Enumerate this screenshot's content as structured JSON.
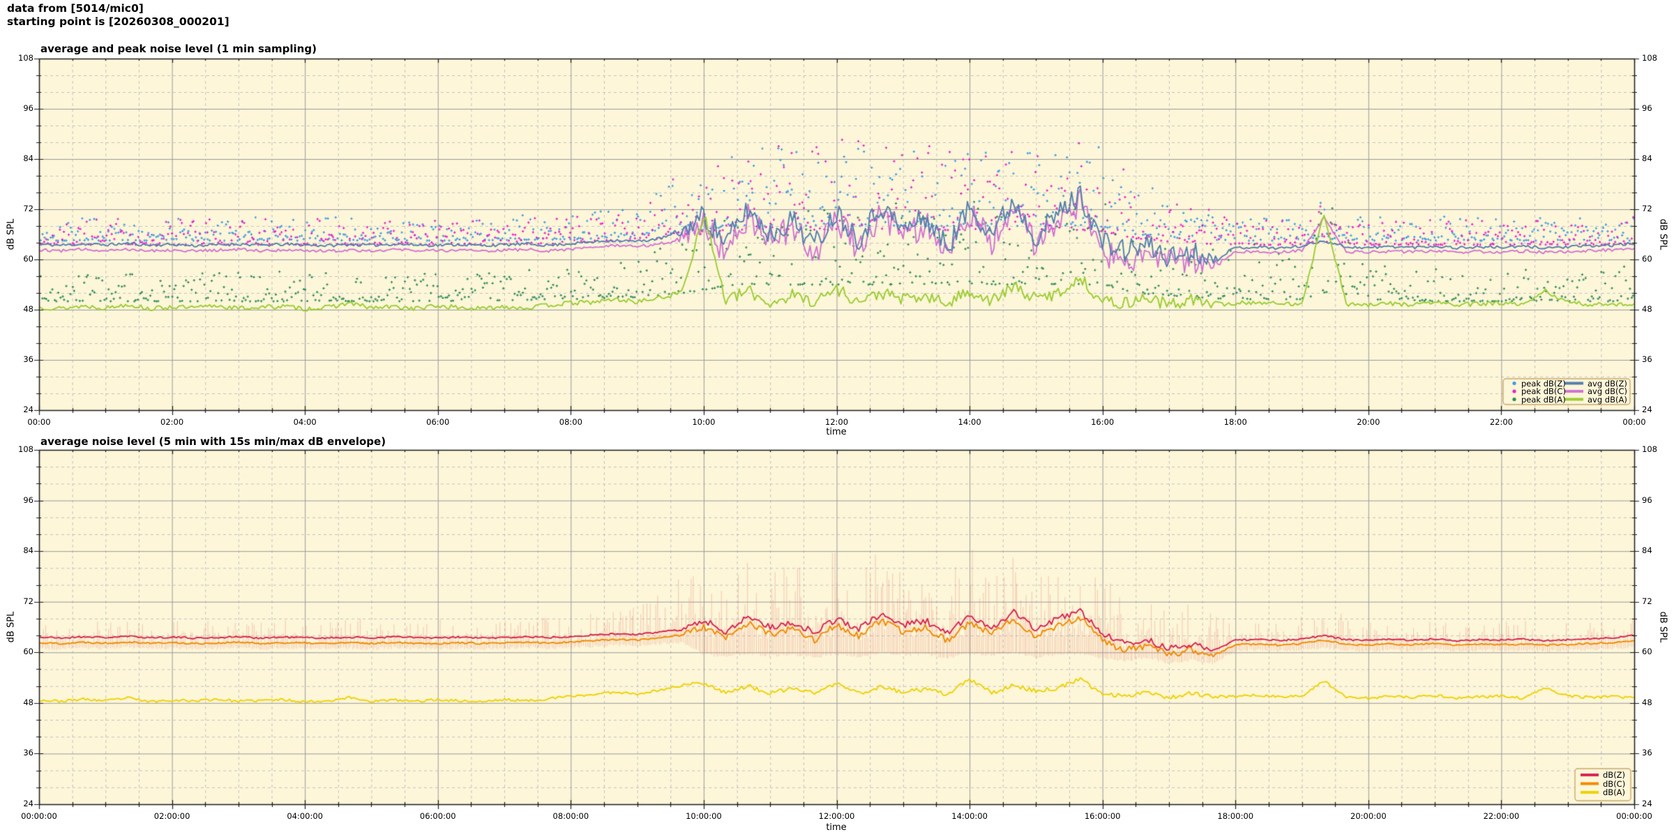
{
  "meta": {
    "line1": "data from [5014/mic0]",
    "line2": "starting point is [20260308_000201]"
  },
  "style": {
    "background": "#fdf6d9",
    "grid_major": "#9a9a9a",
    "grid_minor": "#c2c2c2",
    "frame": "#1a1a1a",
    "legend_border": "#c9a86a"
  },
  "chart_data": [
    {
      "type": "line+scatter",
      "title": "average and peak noise level (1 min sampling)",
      "xlabel": "time",
      "ylabel": "dB SPL",
      "ylabel_right": "dB SPL",
      "ylim": [
        24,
        108
      ],
      "yticks": [
        24,
        36,
        48,
        60,
        72,
        84,
        96,
        108
      ],
      "yminor_step": 4,
      "xlim_hours": [
        0,
        24
      ],
      "xtick_labels": [
        "00:00",
        "02:00",
        "04:00",
        "06:00",
        "08:00",
        "10:00",
        "12:00",
        "14:00",
        "16:00",
        "18:00",
        "20:00",
        "22:00",
        "00:00"
      ],
      "xminor_hours": 0.5,
      "grid": true,
      "legend_position": "bottom-right",
      "anchor_step_hours": 0.33333,
      "busy_window_hours": [
        9.7,
        17.6
      ],
      "series": [
        {
          "name": "avg dB(Z)",
          "color": "#537fae",
          "jitter_base": 0.35,
          "jitter_busy": 2.8,
          "values": [
            63.6,
            63.4,
            63.7,
            63.5,
            63.8,
            63.4,
            63.6,
            63.3,
            63.5,
            63.7,
            63.4,
            63.6,
            63.5,
            63.3,
            63.6,
            63.4,
            63.7,
            63.5,
            63.4,
            63.6,
            63.3,
            63.5,
            63.7,
            63.4,
            63.8,
            64.2,
            64.6,
            64.3,
            65.0,
            66.5,
            70.5,
            64.0,
            72.0,
            66.0,
            69.5,
            63.5,
            71.5,
            65.0,
            73.0,
            67.0,
            70.0,
            63.0,
            72.5,
            66.5,
            74.0,
            65.5,
            71.0,
            75.5,
            64.0,
            62.0,
            63.5,
            60.5,
            62.0,
            60.0,
            62.8,
            63.0,
            62.7,
            63.2,
            64.5,
            63.0,
            62.8,
            63.1,
            62.9,
            63.2,
            62.8,
            63.0,
            62.9,
            63.1,
            62.8,
            63.0,
            63.2,
            63.4,
            63.8
          ]
        },
        {
          "name": "avg dB(C)",
          "color": "#d173d1",
          "jitter_base": 0.35,
          "jitter_busy": 3.4,
          "values": [
            62.3,
            62.1,
            62.4,
            62.2,
            62.5,
            62.1,
            62.3,
            62.0,
            62.2,
            62.4,
            62.1,
            62.3,
            62.2,
            62.0,
            62.3,
            62.1,
            62.4,
            62.2,
            62.1,
            62.3,
            62.0,
            62.2,
            62.4,
            62.1,
            62.5,
            62.9,
            63.3,
            63.0,
            63.7,
            65.2,
            69.0,
            61.5,
            70.5,
            64.0,
            68.0,
            61.0,
            70.0,
            62.5,
            71.5,
            65.0,
            68.5,
            60.5,
            71.0,
            64.5,
            72.5,
            63.0,
            69.5,
            73.5,
            61.5,
            60.0,
            61.5,
            58.8,
            60.0,
            58.5,
            61.8,
            62.0,
            61.7,
            62.2,
            70.0,
            61.9,
            61.7,
            62.0,
            61.8,
            62.1,
            61.7,
            61.9,
            61.8,
            62.0,
            61.7,
            61.9,
            62.1,
            62.3,
            62.8
          ]
        },
        {
          "name": "avg dB(A)",
          "color": "#9bcd32",
          "jitter_base": 0.55,
          "jitter_busy": 1.5,
          "values": [
            48.6,
            48.3,
            48.9,
            48.4,
            49.3,
            48.2,
            48.7,
            48.4,
            49.0,
            48.3,
            48.6,
            48.8,
            48.2,
            48.5,
            49.6,
            48.4,
            48.7,
            48.3,
            48.9,
            48.5,
            48.2,
            48.8,
            48.4,
            49.1,
            49.6,
            49.8,
            50.5,
            49.9,
            50.8,
            52.0,
            71.0,
            50.0,
            52.5,
            49.5,
            51.5,
            50.0,
            53.0,
            49.8,
            52.0,
            50.5,
            51.0,
            49.5,
            52.5,
            50.0,
            53.5,
            50.5,
            52.0,
            55.5,
            50.0,
            49.5,
            51.0,
            49.0,
            50.5,
            49.2,
            49.5,
            49.8,
            49.3,
            49.6,
            71.0,
            49.4,
            49.0,
            49.5,
            49.2,
            49.8,
            49.1,
            49.4,
            49.6,
            49.0,
            52.5,
            49.7,
            49.2,
            49.5,
            49.1
          ]
        }
      ],
      "peaks": [
        {
          "name": "peak dB(Z)",
          "color": "#3d9ae0",
          "band_t": [
            0,
            2,
            4,
            6,
            8,
            9,
            9.7,
            10.5,
            12,
            13,
            14,
            15,
            15.9,
            16.5,
            17.2,
            18,
            19,
            19.3,
            20,
            21,
            22,
            23,
            24
          ],
          "band_min": [
            64.5,
            64.5,
            64.5,
            64.5,
            64.8,
            65.5,
            66.5,
            68,
            68,
            68,
            68,
            68,
            68,
            66,
            65,
            64.5,
            64.5,
            65,
            64.5,
            64.5,
            64.5,
            64.5,
            64.5
          ],
          "band_max": [
            70.5,
            70,
            70.5,
            70,
            71,
            74,
            80,
            86,
            88,
            86,
            87,
            86,
            88,
            80,
            74,
            70.5,
            70,
            74,
            70,
            70.5,
            70,
            70.5,
            71
          ]
        },
        {
          "name": "peak dB(C)",
          "color": "#e81ec8",
          "band_t": [
            0,
            2,
            4,
            6,
            8,
            9,
            9.7,
            10.5,
            12,
            13,
            14,
            15,
            15.9,
            16.5,
            17.2,
            18,
            19,
            19.3,
            20,
            21,
            22,
            23,
            24
          ],
          "band_min": [
            63.5,
            63.5,
            63.5,
            63.5,
            63.8,
            64.5,
            65.5,
            67,
            67,
            67,
            67,
            67,
            67,
            65,
            64,
            63.5,
            63.5,
            64,
            63.5,
            63.5,
            63.5,
            63.5,
            63.5
          ],
          "band_max": [
            70,
            69.5,
            70,
            69.5,
            70.5,
            73.5,
            81,
            86.5,
            89,
            87,
            87.5,
            86,
            88.5,
            81,
            74,
            70,
            69.5,
            73,
            69.5,
            70,
            69.5,
            70,
            70.5
          ]
        },
        {
          "name": "peak dB(A)",
          "color": "#2e8b57",
          "band_t": [
            0,
            2,
            4,
            6,
            8,
            9,
            9.7,
            10.5,
            12,
            13,
            14,
            15,
            15.9,
            16.5,
            17.2,
            18,
            19,
            19.3,
            20,
            21,
            22,
            23,
            24
          ],
          "band_min": [
            50,
            50,
            50,
            50,
            50.5,
            51,
            52,
            54,
            54,
            54,
            54,
            54,
            54,
            52,
            51,
            50.5,
            50.5,
            52,
            50.5,
            50,
            50,
            50,
            50
          ],
          "band_max": [
            57,
            56.5,
            57.5,
            56.5,
            58,
            60,
            66,
            73,
            75,
            74,
            74,
            73,
            75,
            68,
            62,
            66,
            60,
            79,
            59,
            58,
            57.5,
            58,
            58.5
          ]
        }
      ]
    },
    {
      "type": "line+band",
      "title": "average noise level (5 min with 15s min/max dB envelope)",
      "xlabel": "time",
      "ylabel": "dB SPL",
      "ylabel_right": "dB SPL",
      "ylim": [
        24,
        108
      ],
      "yticks": [
        24,
        36,
        48,
        60,
        72,
        84,
        96,
        108
      ],
      "yminor_step": 4,
      "xlim_hours": [
        0,
        24
      ],
      "xtick_labels": [
        "00:00:00",
        "02:00:00",
        "04:00:00",
        "06:00:00",
        "08:00:00",
        "10:00:00",
        "12:00:00",
        "14:00:00",
        "16:00:00",
        "18:00:00",
        "20:00:00",
        "22:00:00",
        "00:00:00"
      ],
      "xminor_hours": 0.5,
      "grid": true,
      "legend_position": "bottom-right",
      "anchor_step_hours": 0.33333,
      "busy_window_hours": [
        9.7,
        17.6
      ],
      "envelope": {
        "name": "15s min/max dB envelope",
        "color": "rgba(231,139,125,0.45)",
        "max": [
          67.5,
          66.8,
          68.0,
          67.0,
          69.5,
          66.8,
          67.5,
          67.0,
          68.5,
          67.2,
          67.0,
          68.0,
          66.8,
          67.2,
          69.8,
          67.0,
          67.5,
          66.8,
          68.2,
          67.0,
          66.8,
          68.0,
          67.2,
          68.5,
          69.0,
          70.0,
          71.5,
          72.0,
          74.0,
          78.0,
          83.0,
          79.0,
          84.5,
          80.0,
          82.0,
          78.5,
          85.0,
          80.5,
          86.0,
          81.0,
          83.5,
          78.0,
          85.5,
          80.0,
          86.0,
          79.5,
          84.0,
          85.5,
          78.0,
          74.0,
          76.0,
          71.0,
          72.5,
          69.0,
          67.5,
          68.0,
          67.3,
          68.5,
          75.0,
          67.6,
          67.2,
          67.8,
          67.4,
          68.0,
          67.2,
          67.6,
          67.4,
          67.8,
          67.2,
          67.6,
          68.0,
          68.4,
          69.0
        ],
        "min": [
          61.0,
          60.8,
          61.1,
          60.9,
          61.2,
          60.9,
          61.0,
          60.8,
          60.9,
          61.1,
          60.8,
          61.0,
          60.9,
          60.8,
          61.0,
          60.8,
          61.1,
          60.9,
          60.8,
          61.0,
          60.8,
          60.9,
          61.1,
          60.9,
          61.2,
          61.4,
          61.7,
          61.5,
          62.0,
          62.5,
          59.5,
          59.0,
          59.8,
          59.2,
          59.5,
          58.8,
          59.6,
          59.0,
          60.0,
          59.4,
          59.5,
          58.6,
          59.8,
          59.2,
          60.0,
          58.9,
          59.5,
          59.7,
          58.5,
          58.0,
          58.8,
          57.5,
          58.2,
          57.4,
          60.4,
          60.6,
          60.3,
          60.7,
          61.0,
          60.5,
          60.3,
          60.6,
          60.4,
          60.7,
          60.3,
          60.5,
          60.4,
          60.6,
          60.3,
          60.5,
          60.7,
          60.9,
          61.2
        ]
      },
      "series": [
        {
          "name": "dB(Z)",
          "color": "#d8234f",
          "jitter_base": 0.2,
          "jitter_busy": 0.8,
          "values": [
            63.6,
            63.4,
            63.7,
            63.5,
            63.8,
            63.5,
            63.6,
            63.4,
            63.5,
            63.7,
            63.4,
            63.6,
            63.5,
            63.4,
            63.6,
            63.4,
            63.7,
            63.5,
            63.4,
            63.6,
            63.4,
            63.5,
            63.7,
            63.5,
            63.8,
            64.1,
            64.4,
            64.2,
            64.8,
            65.6,
            67.5,
            65.0,
            68.5,
            66.0,
            67.0,
            64.8,
            68.0,
            65.5,
            69.0,
            66.5,
            67.5,
            64.5,
            68.5,
            66.0,
            69.5,
            65.5,
            68.0,
            69.8,
            64.5,
            62.0,
            63.0,
            60.8,
            62.0,
            60.5,
            62.9,
            63.1,
            62.8,
            63.2,
            64.0,
            63.0,
            62.8,
            63.1,
            62.9,
            63.2,
            62.8,
            63.0,
            62.9,
            63.1,
            62.8,
            63.0,
            63.2,
            63.4,
            64.0
          ]
        },
        {
          "name": "dB(C)",
          "color": "#f18a00",
          "jitter_base": 0.2,
          "jitter_busy": 0.8,
          "values": [
            62.3,
            62.1,
            62.4,
            62.2,
            62.5,
            62.2,
            62.3,
            62.1,
            62.2,
            62.4,
            62.1,
            62.3,
            62.2,
            62.1,
            62.3,
            62.1,
            62.4,
            62.2,
            62.1,
            62.3,
            62.1,
            62.2,
            62.4,
            62.2,
            62.5,
            62.8,
            63.1,
            62.9,
            63.5,
            64.2,
            66.0,
            63.3,
            67.0,
            64.3,
            65.5,
            63.0,
            66.5,
            63.8,
            67.5,
            64.8,
            66.0,
            62.8,
            67.0,
            64.3,
            68.0,
            63.8,
            66.5,
            68.2,
            62.8,
            60.5,
            61.5,
            59.5,
            60.6,
            59.2,
            61.8,
            62.0,
            61.7,
            62.1,
            62.9,
            61.9,
            61.7,
            62.0,
            61.8,
            62.1,
            61.7,
            61.9,
            61.8,
            62.0,
            61.7,
            61.9,
            62.1,
            62.3,
            62.9
          ]
        },
        {
          "name": "dB(A)",
          "color": "#eed202",
          "jitter_base": 0.3,
          "jitter_busy": 0.5,
          "values": [
            48.7,
            48.4,
            48.9,
            48.5,
            49.2,
            48.3,
            48.7,
            48.5,
            48.9,
            48.4,
            48.6,
            48.8,
            48.3,
            48.5,
            49.3,
            48.4,
            48.7,
            48.4,
            48.8,
            48.5,
            48.3,
            48.8,
            48.5,
            49.0,
            49.6,
            50.0,
            50.6,
            50.2,
            51.0,
            52.2,
            52.8,
            50.5,
            52.0,
            50.2,
            51.5,
            50.4,
            52.6,
            50.3,
            51.8,
            50.6,
            51.2,
            50.0,
            53.6,
            50.4,
            52.2,
            50.8,
            51.6,
            53.6,
            50.2,
            49.6,
            50.8,
            49.2,
            50.4,
            49.4,
            49.6,
            49.9,
            49.4,
            49.7,
            53.2,
            49.5,
            49.1,
            49.6,
            49.3,
            49.8,
            49.2,
            49.5,
            49.6,
            49.1,
            51.5,
            49.7,
            49.3,
            49.5,
            49.2
          ]
        }
      ]
    }
  ]
}
